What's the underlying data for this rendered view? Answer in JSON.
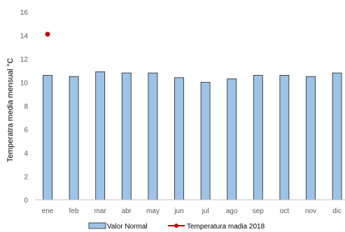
{
  "chart_data": {
    "type": "bar",
    "title": "",
    "xlabel": "",
    "ylabel": "Temperatra media mensual °C",
    "ylim": [
      0,
      16
    ],
    "yticks": [
      0,
      2,
      4,
      6,
      8,
      10,
      12,
      14,
      16
    ],
    "grid": false,
    "legend_position": "bottom",
    "categories": [
      "ene",
      "feb",
      "mar",
      "abr",
      "may",
      "jun",
      "jul",
      "ago",
      "sep",
      "oct",
      "nov",
      "dic"
    ],
    "series": [
      {
        "name": "Valor Normal",
        "type": "bar",
        "color": "#9dc3e6",
        "edge_color": "#1f1f1f",
        "values": [
          10.6,
          10.5,
          10.9,
          10.8,
          10.8,
          10.4,
          10.0,
          10.3,
          10.6,
          10.6,
          10.5,
          10.8
        ]
      },
      {
        "name": "Temperatura madia 2018",
        "type": "line",
        "color": "#c00000",
        "values": [
          14.1,
          null,
          null,
          null,
          null,
          null,
          null,
          null,
          null,
          null,
          null,
          null
        ]
      }
    ]
  }
}
